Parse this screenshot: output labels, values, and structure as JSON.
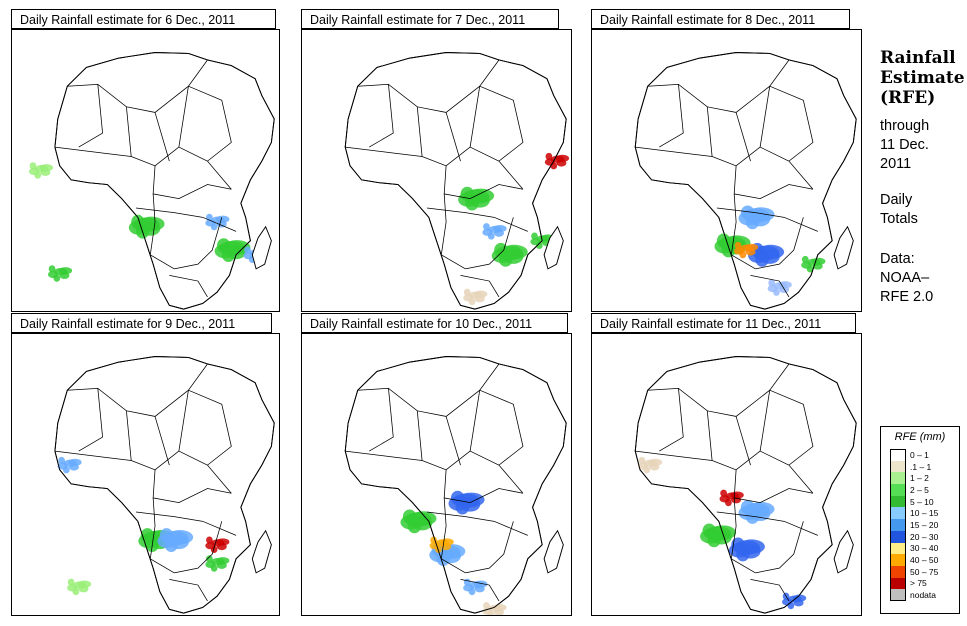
{
  "panels": [
    {
      "title": "Daily Rainfall estimate for  6 Dec., 2011",
      "rain": [
        [
          "#33cc33",
          140,
          210,
          "m"
        ],
        [
          "#66aaff",
          215,
          205,
          "s"
        ],
        [
          "#33cc33",
          230,
          235,
          "m"
        ],
        [
          "#66aaff",
          255,
          240,
          "s"
        ],
        [
          "#33cc33",
          50,
          260,
          "s"
        ],
        [
          "#99ee77",
          30,
          150,
          "s"
        ]
      ]
    },
    {
      "title": "Daily Rainfall estimate for  7 Dec., 2011",
      "rain": [
        [
          "#33cc33",
          180,
          180,
          "m"
        ],
        [
          "#66aaff",
          200,
          215,
          "s"
        ],
        [
          "#33cc33",
          215,
          240,
          "m"
        ],
        [
          "#cc0000",
          265,
          140,
          "s"
        ],
        [
          "#33cc33",
          250,
          225,
          "s"
        ],
        [
          "#e6d3b8",
          180,
          285,
          "s"
        ]
      ]
    },
    {
      "title": "Daily Rainfall estimate for  8 Dec., 2011",
      "rain": [
        [
          "#66aaff",
          170,
          200,
          "m"
        ],
        [
          "#3366ee",
          180,
          240,
          "m"
        ],
        [
          "#33cc33",
          145,
          230,
          "m"
        ],
        [
          "#ff8800",
          160,
          235,
          "s"
        ],
        [
          "#33cc33",
          230,
          250,
          "s"
        ],
        [
          "#99bbff",
          195,
          275,
          "s"
        ]
      ]
    },
    {
      "title": "Daily Rainfall estimate for  9 Dec., 2011",
      "rain": [
        [
          "#33cc33",
          150,
          220,
          "m"
        ],
        [
          "#66aaff",
          170,
          220,
          "m"
        ],
        [
          "#33cc33",
          215,
          245,
          "s"
        ],
        [
          "#cc0000",
          215,
          225,
          "s"
        ],
        [
          "#99ee77",
          70,
          270,
          "s"
        ],
        [
          "#66aaff",
          60,
          140,
          "s"
        ]
      ]
    },
    {
      "title": "Daily Rainfall estimate for  10 Dec., 2011",
      "rain": [
        [
          "#3366ee",
          170,
          180,
          "m"
        ],
        [
          "#66aaff",
          150,
          235,
          "m"
        ],
        [
          "#ffaa00",
          145,
          225,
          "s"
        ],
        [
          "#33cc33",
          120,
          200,
          "m"
        ],
        [
          "#66aaff",
          180,
          270,
          "s"
        ],
        [
          "#e6d3b8",
          200,
          295,
          "s"
        ]
      ]
    },
    {
      "title": "Daily Rainfall estimate for  11 Dec., 2011",
      "rain": [
        [
          "#66aaff",
          170,
          190,
          "m"
        ],
        [
          "#3366ee",
          160,
          230,
          "m"
        ],
        [
          "#cc0000",
          145,
          175,
          "s"
        ],
        [
          "#33cc33",
          130,
          215,
          "m"
        ],
        [
          "#3366ee",
          210,
          285,
          "s"
        ],
        [
          "#e6d3b8",
          60,
          140,
          "s"
        ]
      ]
    }
  ],
  "side": {
    "title_lines": [
      "Rainfall",
      "Estimate",
      "(RFE)"
    ],
    "through_lines": [
      "through",
      "11 Dec.",
      "2011"
    ],
    "totals_lines": [
      "Daily",
      "Totals"
    ],
    "data_lines": [
      "Data:",
      "NOAA–",
      "RFE 2.0"
    ]
  },
  "legend": {
    "title": "RFE (mm)",
    "entries": [
      {
        "label": "0 – 1",
        "color": "#ffffff"
      },
      {
        "label": ".1 – 1",
        "color": "#eee6cc"
      },
      {
        "label": "1 – 2",
        "color": "#a8f090"
      },
      {
        "label": "2 – 5",
        "color": "#55dd55"
      },
      {
        "label": "5 – 10",
        "color": "#33bb33"
      },
      {
        "label": "10 – 15",
        "color": "#88ccff"
      },
      {
        "label": "15 – 20",
        "color": "#4499ee"
      },
      {
        "label": "20 – 30",
        "color": "#2255dd"
      },
      {
        "label": "30 – 40",
        "color": "#ffee88"
      },
      {
        "label": "40 – 50",
        "color": "#ffaa00"
      },
      {
        "label": "50 – 75",
        "color": "#ee4400"
      },
      {
        "label": "> 75",
        "color": "#bb0000"
      },
      {
        "label": "nodata",
        "color": "#bfbfbf"
      }
    ]
  }
}
